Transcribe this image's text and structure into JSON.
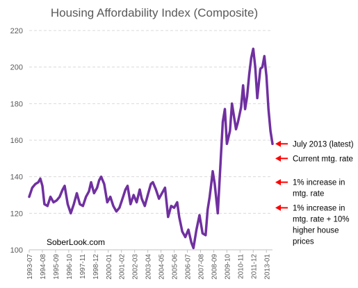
{
  "chart_data": {
    "type": "line",
    "title": "Housing Affordability Index (Composite)",
    "xlabel": "",
    "ylabel": "",
    "ylim": [
      100,
      220
    ],
    "yticks": [
      100,
      120,
      140,
      160,
      180,
      200,
      220
    ],
    "grid": "horizontal dashed",
    "legend": "none",
    "xlim": [
      "1993-07",
      "2013-07"
    ],
    "xtick_labels": [
      "1993-07",
      "1994-08",
      "1995-09",
      "1996-10",
      "1997-11",
      "1998-12",
      "2000-01",
      "2001-02",
      "2002-03",
      "2003-04",
      "2004-05",
      "2005-06",
      "2006-07",
      "2007-08",
      "2008-09",
      "2009-10",
      "2010-11",
      "2011-12",
      "2013-01"
    ],
    "series": [
      {
        "name": "",
        "color": "#7030A0",
        "points": [
          [
            "1993-07",
            129
          ],
          [
            "1993-10",
            134
          ],
          [
            "1994-01",
            136
          ],
          [
            "1994-04",
            137
          ],
          [
            "1994-06",
            139
          ],
          [
            "1994-08",
            135
          ],
          [
            "1994-10",
            125
          ],
          [
            "1995-01",
            124
          ],
          [
            "1995-04",
            129
          ],
          [
            "1995-07",
            126
          ],
          [
            "1995-10",
            127
          ],
          [
            "1996-01",
            129
          ],
          [
            "1996-04",
            133
          ],
          [
            "1996-06",
            135
          ],
          [
            "1996-09",
            125
          ],
          [
            "1996-12",
            120
          ],
          [
            "1997-03",
            125
          ],
          [
            "1997-06",
            131
          ],
          [
            "1997-09",
            125
          ],
          [
            "1997-12",
            124
          ],
          [
            "1998-03",
            129
          ],
          [
            "1998-06",
            132
          ],
          [
            "1998-08",
            137
          ],
          [
            "1998-11",
            131
          ],
          [
            "1999-02",
            134
          ],
          [
            "1999-04",
            138
          ],
          [
            "1999-06",
            140
          ],
          [
            "1999-09",
            136
          ],
          [
            "1999-12",
            126
          ],
          [
            "2000-03",
            129
          ],
          [
            "2000-06",
            124
          ],
          [
            "2000-09",
            121
          ],
          [
            "2000-12",
            123
          ],
          [
            "2001-03",
            128
          ],
          [
            "2001-06",
            133
          ],
          [
            "2001-08",
            135
          ],
          [
            "2001-11",
            125
          ],
          [
            "2002-02",
            130
          ],
          [
            "2002-05",
            126
          ],
          [
            "2002-08",
            133
          ],
          [
            "2002-10",
            128
          ],
          [
            "2003-01",
            124
          ],
          [
            "2003-04",
            130
          ],
          [
            "2003-07",
            136
          ],
          [
            "2003-09",
            137
          ],
          [
            "2003-12",
            133
          ],
          [
            "2004-03",
            128
          ],
          [
            "2004-06",
            131
          ],
          [
            "2004-09",
            134
          ],
          [
            "2004-12",
            118
          ],
          [
            "2005-03",
            124
          ],
          [
            "2005-06",
            123
          ],
          [
            "2005-09",
            126
          ],
          [
            "2005-11",
            118
          ],
          [
            "2006-02",
            110
          ],
          [
            "2006-05",
            107
          ],
          [
            "2006-08",
            111
          ],
          [
            "2006-11",
            104
          ],
          [
            "2007-01",
            101
          ],
          [
            "2007-04",
            111
          ],
          [
            "2007-07",
            119
          ],
          [
            "2007-10",
            109
          ],
          [
            "2008-01",
            108
          ],
          [
            "2008-03",
            122
          ],
          [
            "2008-05",
            129
          ],
          [
            "2008-07",
            138
          ],
          [
            "2008-08",
            143
          ],
          [
            "2008-10",
            136
          ],
          [
            "2009-01",
            120
          ],
          [
            "2009-04",
            150
          ],
          [
            "2009-06",
            170
          ],
          [
            "2009-08",
            177
          ],
          [
            "2009-10",
            158
          ],
          [
            "2010-01",
            165
          ],
          [
            "2010-03",
            180
          ],
          [
            "2010-05",
            173
          ],
          [
            "2010-07",
            166
          ],
          [
            "2010-09",
            170
          ],
          [
            "2010-12",
            178
          ],
          [
            "2011-02",
            190
          ],
          [
            "2011-04",
            177
          ],
          [
            "2011-06",
            184
          ],
          [
            "2011-08",
            196
          ],
          [
            "2011-10",
            205
          ],
          [
            "2011-12",
            210
          ],
          [
            "2012-02",
            200
          ],
          [
            "2012-04",
            183
          ],
          [
            "2012-07",
            199
          ],
          [
            "2012-09",
            200
          ],
          [
            "2012-11",
            206
          ],
          [
            "2013-01",
            195
          ],
          [
            "2013-03",
            177
          ],
          [
            "2013-05",
            165
          ],
          [
            "2013-07",
            158
          ]
        ]
      }
    ],
    "annotations": [
      {
        "text_lines": [
          "July 2013 (latest)"
        ],
        "arrow_color": "#FF0000",
        "y_value": 158
      },
      {
        "text_lines": [
          "Current mtg. rate"
        ],
        "arrow_color": "#FF0000",
        "y_value": 150
      },
      {
        "text_lines": [
          "1% increase in",
          "mtg. rate"
        ],
        "arrow_color": "#FF0000",
        "y_value": 137
      },
      {
        "text_lines": [
          "1% increase in",
          "mtg. rate + 10%",
          "higher house",
          "prices"
        ],
        "arrow_color": "#FF0000",
        "y_value": 123
      }
    ],
    "watermark": "SoberLook.com"
  }
}
